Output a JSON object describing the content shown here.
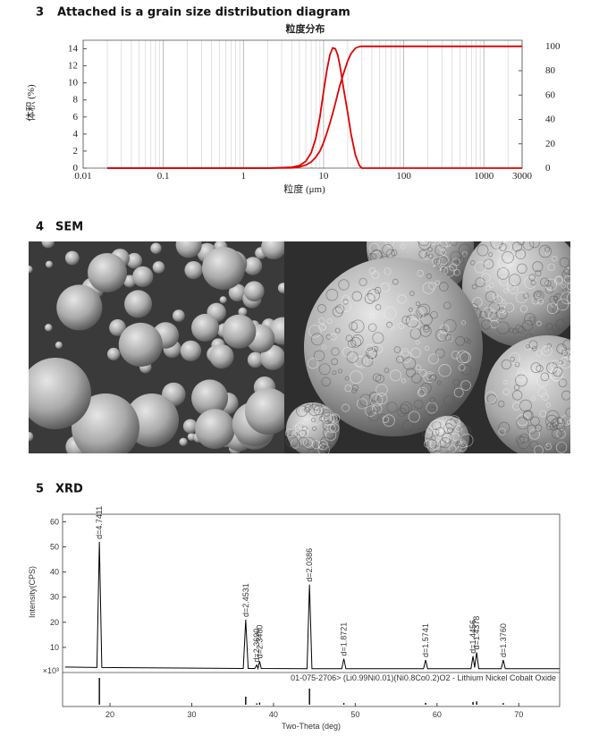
{
  "sections": [
    {
      "number": "3",
      "title": "Attached is a grain size distribution diagram",
      "chart": {
        "type": "line",
        "title": "粒度分布",
        "xlabel": "粒度 (μm)",
        "ylabel": "体积 (%)",
        "xscale": "log",
        "xlim": [
          0.01,
          3000
        ],
        "xticks": [
          0.01,
          0.1,
          1,
          10,
          100,
          1000,
          3000
        ],
        "ylim": [
          0,
          15
        ],
        "yticks": [
          0,
          2,
          4,
          6,
          8,
          10,
          12,
          14
        ],
        "y2lim": [
          0,
          105
        ],
        "y2ticks": [
          0,
          20,
          40,
          60,
          80,
          100
        ],
        "minor_grid": true,
        "x": [
          0.02,
          2,
          4,
          5,
          6,
          7,
          8,
          9,
          10,
          11,
          12,
          13,
          14,
          15,
          16,
          18,
          20,
          22,
          25,
          28,
          30,
          35,
          3000
        ],
        "series": [
          {
            "color": "#e00000",
            "values": [
              0,
              0,
              0.1,
              0.3,
              0.8,
              1.8,
              3.5,
              6,
              9,
              11.5,
              13.3,
              14.1,
              14,
              13.3,
              12,
              9,
              6.5,
              4,
              1.5,
              0.3,
              0,
              0,
              0
            ]
          },
          {
            "color": "#e00000",
            "axis": "y2",
            "values": [
              0,
              0,
              0.2,
              1,
              2.5,
              5,
              9,
              14,
              21,
              29,
              37,
              45,
              53,
              61,
              68,
              79,
              88,
              94,
              98.5,
              99.8,
              100,
              100,
              100
            ]
          }
        ]
      }
    },
    {
      "number": "4",
      "title": "SEM"
    },
    {
      "number": "5",
      "title": "XRD",
      "chart": {
        "type": "line",
        "ylabel": "Intensity(CPS)",
        "multiplier": "×10³",
        "xlabel": "Two-Theta (deg)",
        "xlim": [
          14.2,
          75
        ],
        "xticks": [
          20,
          30,
          40,
          50,
          60,
          70
        ],
        "ylim": [
          0,
          63
        ],
        "yticks": [
          10,
          20,
          30,
          40,
          50,
          60
        ],
        "color": "#000000",
        "x": [
          14.5,
          18.4,
          18.7,
          19.0,
          36.3,
          36.6,
          36.9,
          37.7,
          37.95,
          38.1,
          38.3,
          38.5,
          44.1,
          44.4,
          44.7,
          48.35,
          48.6,
          48.85,
          58.35,
          58.6,
          58.85,
          64.15,
          64.4,
          64.6,
          64.85,
          65.1,
          67.85,
          68.1,
          68.35,
          75
        ],
        "values": [
          2.2,
          2,
          52,
          2,
          1.6,
          21,
          1.6,
          1.6,
          3,
          1.6,
          4.5,
          1.6,
          1.5,
          35,
          1.5,
          1.5,
          5.5,
          1.5,
          1.5,
          5,
          1.5,
          1.5,
          6.5,
          2,
          8,
          1.5,
          1.5,
          5,
          1.5,
          1.5
        ],
        "peak_labels": [
          null,
          null,
          "d=4.7411",
          null,
          null,
          "d=2.4531",
          null,
          null,
          "d=2.3690",
          null,
          "d=2.3480",
          null,
          null,
          "d=2.0386",
          null,
          null,
          "d=1.8721",
          null,
          null,
          "d=1.5741",
          null,
          null,
          "d=1.4456",
          null,
          "d=1.4378",
          null,
          null,
          "d=1.3760",
          null,
          null
        ],
        "reference": {
          "label": "01-075-2706> (Li0.99Ni0.01)(Ni0.8Co0.2)O2 - Lithium Nickel Cobalt Oxide",
          "ylim": [
            0,
            100
          ],
          "x": [
            18.7,
            36.6,
            37.95,
            38.3,
            44.4,
            48.6,
            58.6,
            64.4,
            64.85,
            68.1
          ],
          "values": [
            100,
            30,
            5,
            8,
            60,
            6,
            7,
            10,
            12,
            6
          ]
        }
      }
    }
  ]
}
